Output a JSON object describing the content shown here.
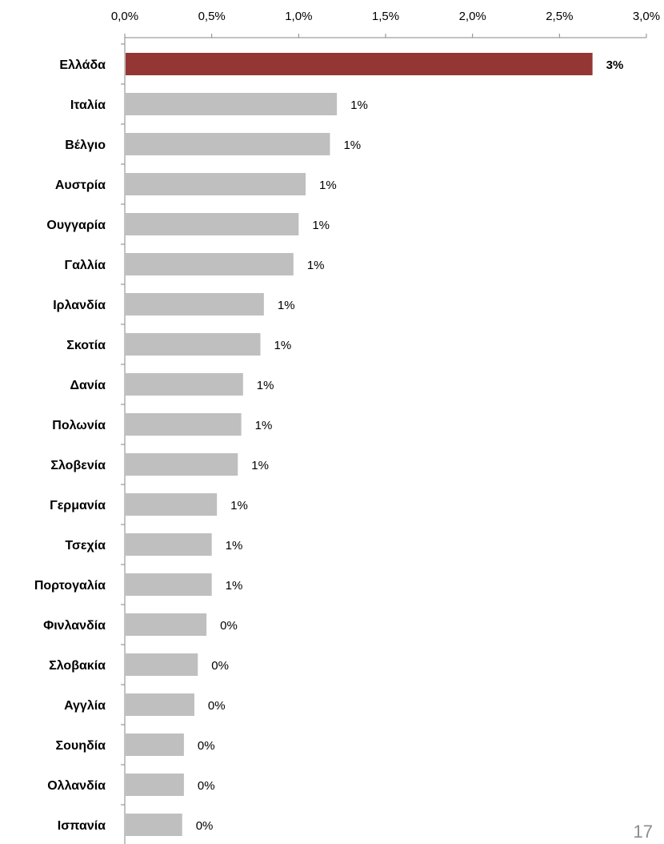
{
  "chart_data": {
    "type": "bar",
    "orientation": "horizontal",
    "xaxis_position": "top",
    "xlim": [
      0,
      3.0
    ],
    "xticks": [
      0,
      0.5,
      1.0,
      1.5,
      2.0,
      2.5,
      3.0
    ],
    "xtick_labels": [
      "0,0%",
      "0,5%",
      "1,0%",
      "1,5%",
      "2,0%",
      "2,5%",
      "3,0%"
    ],
    "grid": false,
    "legend": "none",
    "categories": [
      "Ελλάδα",
      "Ιταλία",
      "Βέλγιο",
      "Αυστρία",
      "Ουγγαρία",
      "Γαλλία",
      "Ιρλανδία",
      "Σκοτία",
      "Δανία",
      "Πολωνία",
      "Σλοβενία",
      "Γερμανία",
      "Τσεχία",
      "Πορτογαλία",
      "Φινλανδία",
      "Σλοβακία",
      "Αγγλία",
      "Σουηδία",
      "Ολλανδία",
      "Ισπανία"
    ],
    "values": [
      2.69,
      1.22,
      1.18,
      1.04,
      1.0,
      0.97,
      0.8,
      0.78,
      0.68,
      0.67,
      0.65,
      0.53,
      0.5,
      0.5,
      0.47,
      0.42,
      0.4,
      0.34,
      0.34,
      0.33
    ],
    "data_labels": [
      "3%",
      "1%",
      "1%",
      "1%",
      "1%",
      "1%",
      "1%",
      "1%",
      "1%",
      "1%",
      "1%",
      "1%",
      "1%",
      "1%",
      "0%",
      "0%",
      "0%",
      "0%",
      "0%",
      "0%"
    ],
    "highlight_index": 0,
    "colors": {
      "highlight": "#943634",
      "default": "#bfbfbf",
      "axis": "#868686"
    }
  },
  "page_number": "17"
}
